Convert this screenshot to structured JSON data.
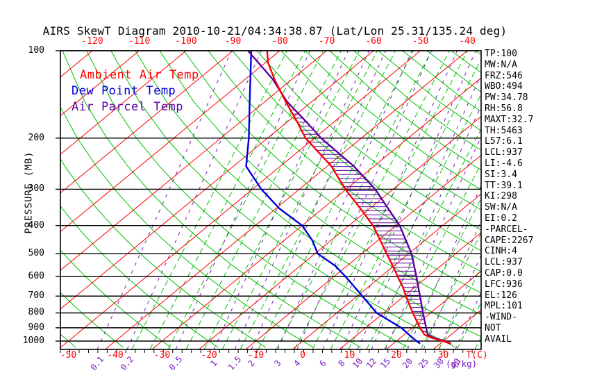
{
  "title": "AIRS SkewT Diagram 2010-10-21/04:34:38.87 (Lat/Lon 25.31/135.24 deg)",
  "legend": {
    "ambient": "Ambient Air Temp",
    "dew": "Dew Point Temp",
    "parcel": "Air Parcel Temp"
  },
  "y_axis": {
    "title": "PRESSURE (MB)",
    "ticks": [
      100,
      200,
      300,
      400,
      500,
      600,
      700,
      800,
      900,
      1000
    ]
  },
  "x_axis": {
    "bottom_temps_c": [
      -50,
      -40,
      -30,
      -20,
      -10,
      0,
      10,
      20,
      30
    ],
    "temp_unit": "T(C)",
    "top_temps_c": [
      -120,
      -110,
      -100,
      -90,
      -80,
      -70,
      -60,
      -50,
      -40
    ],
    "mixing_ratio_labels": [
      {
        "v": "0.1",
        "x": 140
      },
      {
        "v": "0.2",
        "x": 183
      },
      {
        "v": "0.5",
        "x": 253
      },
      {
        "v": "1",
        "x": 308
      },
      {
        "v": "1.5",
        "x": 338
      },
      {
        "v": "2",
        "x": 362
      },
      {
        "v": "3",
        "x": 400
      },
      {
        "v": "4",
        "x": 428
      },
      {
        "v": "6",
        "x": 465
      },
      {
        "v": "8",
        "x": 492
      },
      {
        "v": "10",
        "x": 515
      },
      {
        "v": "12",
        "x": 535
      },
      {
        "v": "15",
        "x": 555
      },
      {
        "v": "20",
        "x": 587
      },
      {
        "v": "25",
        "x": 610
      },
      {
        "v": "30",
        "x": 632
      },
      {
        "v": "40",
        "x": 656
      }
    ],
    "mixing_unit": "(g/kg)"
  },
  "panel": {
    "lines": [
      "TP:100",
      "MW:N/A",
      "FRZ:546",
      "WBO:494",
      "PW:34.78",
      "RH:56.8",
      "MAXT:32.7",
      "TH:5463",
      "L57:6.1",
      "LCL:937",
      "LI:-4.6",
      "SI:3.4",
      "TT:39.1",
      "KI:298",
      "SW:N/A",
      "EI:0.2",
      "-PARCEL-",
      "CAPE:2267",
      "CINH:4",
      "LCL:937",
      "CAP:0.0",
      "LFC:936",
      "EL:126",
      "MPL:101",
      "-WIND-",
      "NOT",
      "AVAIL"
    ]
  },
  "colors": {
    "red": "#FF0000",
    "green": "#00C000",
    "blue": "#0000DC",
    "purple": "#5A00A0",
    "mixing": "#7816BE",
    "black": "#000000"
  },
  "chart_data": {
    "type": "line",
    "title": "AIRS SkewT Diagram 2010-10-21/04:34:38.87",
    "xlabel": "T(C)",
    "ylabel": "PRESSURE (MB)",
    "y_scale": "log-pressure, 100-1000 mb",
    "x_skew": "temperature skewed 45deg, -50 to 30 C at surface",
    "grid": {
      "isotherms_c": {
        "min": -140,
        "max": 40,
        "step": 10
      },
      "dry_adiabats_theta_c": {
        "min": -60,
        "max": 180,
        "step": 10
      },
      "pressure_lines_mb": [
        100,
        200,
        300,
        400,
        500,
        600,
        700,
        800,
        900,
        1000
      ]
    },
    "series": [
      {
        "name": "Ambient Air Temp",
        "color_key": "red",
        "points_p_t": [
          [
            100,
            -82.7
          ],
          [
            110,
            -79.4
          ],
          [
            125,
            -73.9
          ],
          [
            150,
            -65.5
          ],
          [
            175,
            -58.1
          ],
          [
            200,
            -51.9
          ],
          [
            250,
            -39.1
          ],
          [
            300,
            -30.2
          ],
          [
            350,
            -21.9
          ],
          [
            400,
            -14.9
          ],
          [
            450,
            -9.5
          ],
          [
            500,
            -4.7
          ],
          [
            550,
            -0.3
          ],
          [
            600,
            3.6
          ],
          [
            650,
            7.3
          ],
          [
            700,
            10.4
          ],
          [
            800,
            16.2
          ],
          [
            900,
            21.6
          ],
          [
            950,
            24.3
          ],
          [
            975,
            26.7
          ],
          [
            1000,
            29.9
          ],
          [
            1020,
            32.2
          ]
        ]
      },
      {
        "name": "Dew Point Temp",
        "color_key": "blue",
        "points_p_t": [
          [
            100,
            -86.1
          ],
          [
            150,
            -73.2
          ],
          [
            200,
            -64.0
          ],
          [
            250,
            -57.3
          ],
          [
            300,
            -48.1
          ],
          [
            350,
            -39.2
          ],
          [
            400,
            -30.0
          ],
          [
            450,
            -24.0
          ],
          [
            500,
            -19.4
          ],
          [
            550,
            -12.6
          ],
          [
            600,
            -7.5
          ],
          [
            700,
            1.1
          ],
          [
            800,
            8.5
          ],
          [
            900,
            17.6
          ],
          [
            950,
            21.0
          ],
          [
            1000,
            24.3
          ],
          [
            1020,
            25.7
          ]
        ]
      },
      {
        "name": "Air Parcel Temp",
        "color_key": "purple",
        "points_p_t": [
          [
            100,
            -86.8
          ],
          [
            125,
            -74.3
          ],
          [
            150,
            -65.2
          ],
          [
            175,
            -56.2
          ],
          [
            200,
            -48.6
          ],
          [
            250,
            -34.3
          ],
          [
            300,
            -23.8
          ],
          [
            350,
            -16.0
          ],
          [
            400,
            -9.2
          ],
          [
            450,
            -4.0
          ],
          [
            500,
            0.6
          ],
          [
            600,
            7.6
          ],
          [
            700,
            13.4
          ],
          [
            800,
            18.4
          ],
          [
            900,
            22.9
          ],
          [
            950,
            25.0
          ],
          [
            975,
            27.2
          ],
          [
            1000,
            30.4
          ],
          [
            1020,
            32.3
          ]
        ]
      }
    ],
    "cape_hatch_between": [
      "Ambient Air Temp",
      "Air Parcel Temp"
    ],
    "indices": {
      "CAPE": 2267,
      "CINH": 4,
      "LCL": 937,
      "LFC": 936,
      "EL": 126,
      "MPL": 101
    }
  }
}
